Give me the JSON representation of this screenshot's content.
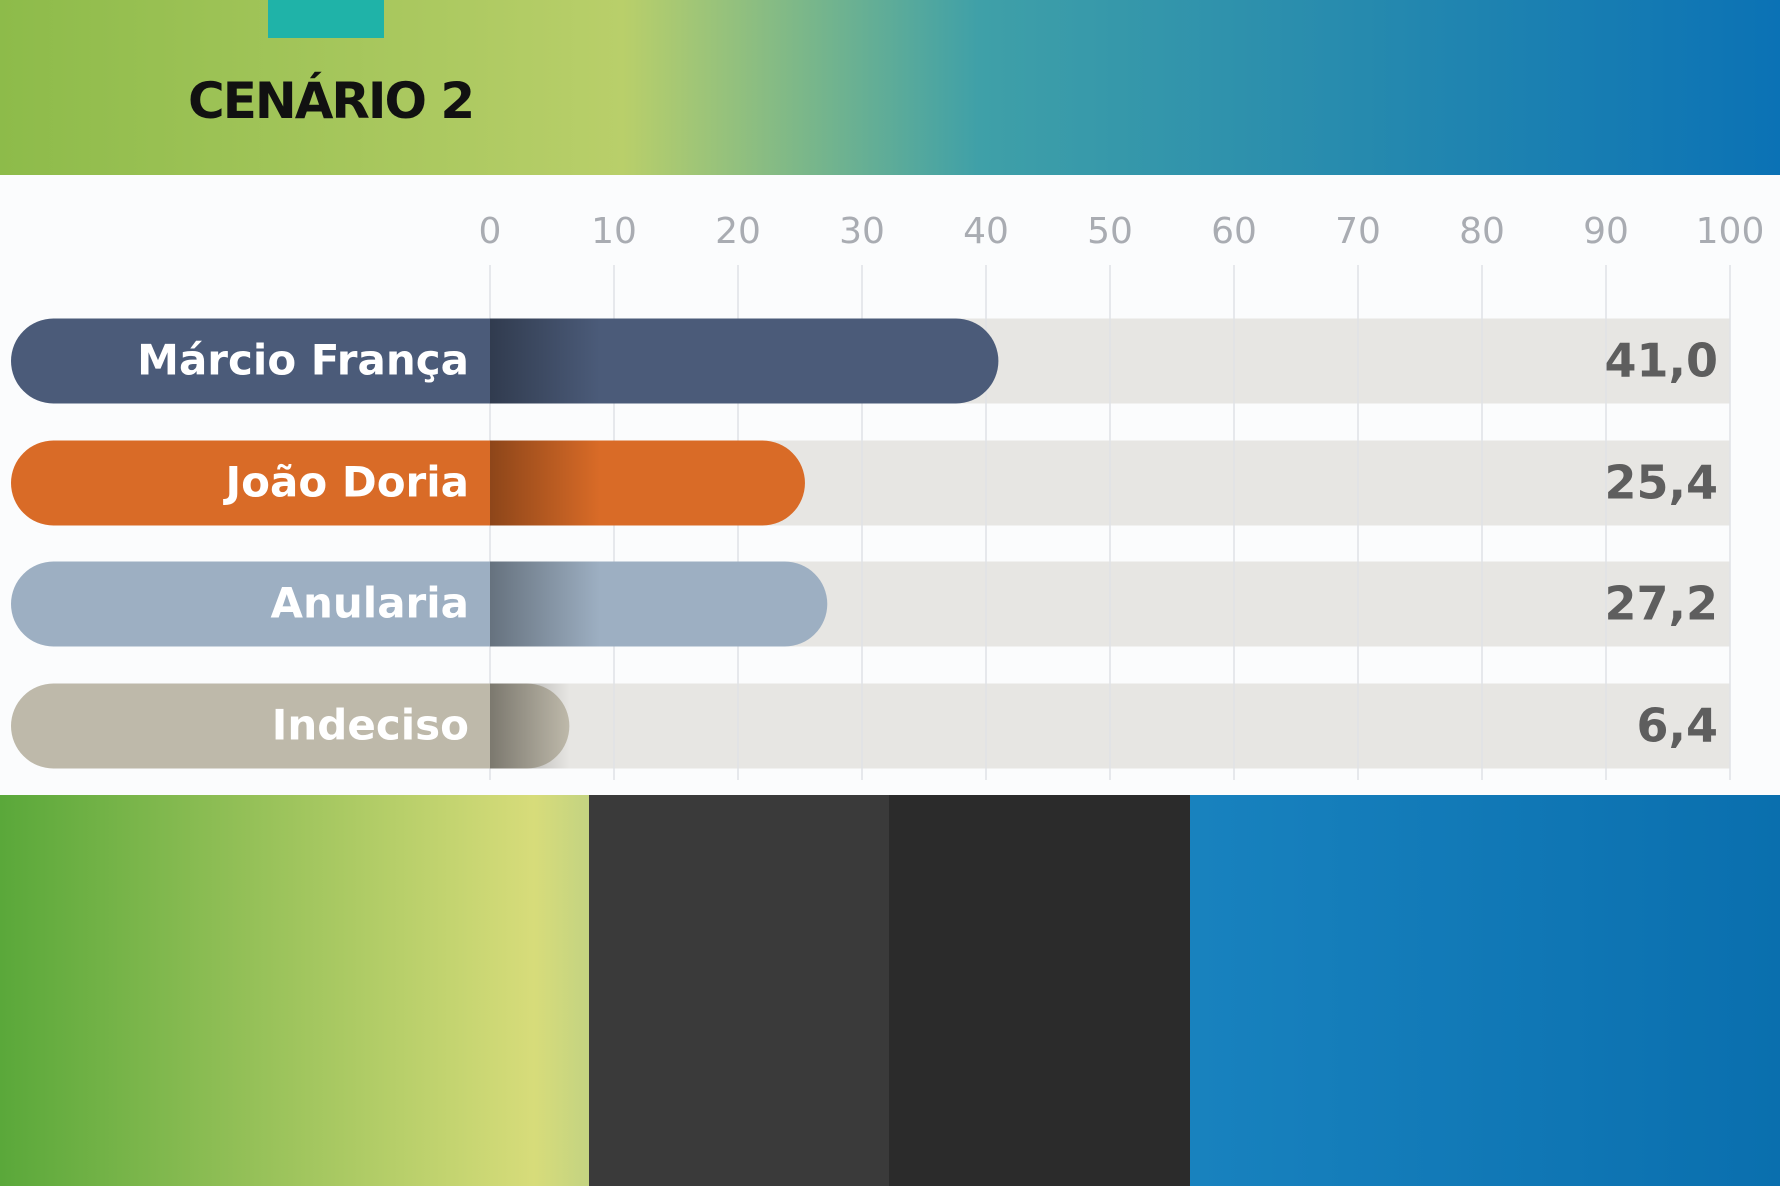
{
  "chart_data": {
    "type": "bar",
    "orientation": "horizontal",
    "title": "CENÁRIO 2",
    "categories": [
      "Márcio França",
      "João Doria",
      "Anularia",
      "Indeciso"
    ],
    "values": [
      41.0,
      25.4,
      27.2,
      6.4
    ],
    "value_labels": [
      "41,0",
      "25,4",
      "27,2",
      "6,4"
    ],
    "colors": [
      "#4b5b79",
      "#d96b27",
      "#9dafc2",
      "#beb9aa"
    ],
    "xlim": [
      0,
      100
    ],
    "xticks": [
      0,
      10,
      20,
      30,
      40,
      50,
      60,
      70,
      80,
      90,
      100
    ],
    "grid": true
  }
}
